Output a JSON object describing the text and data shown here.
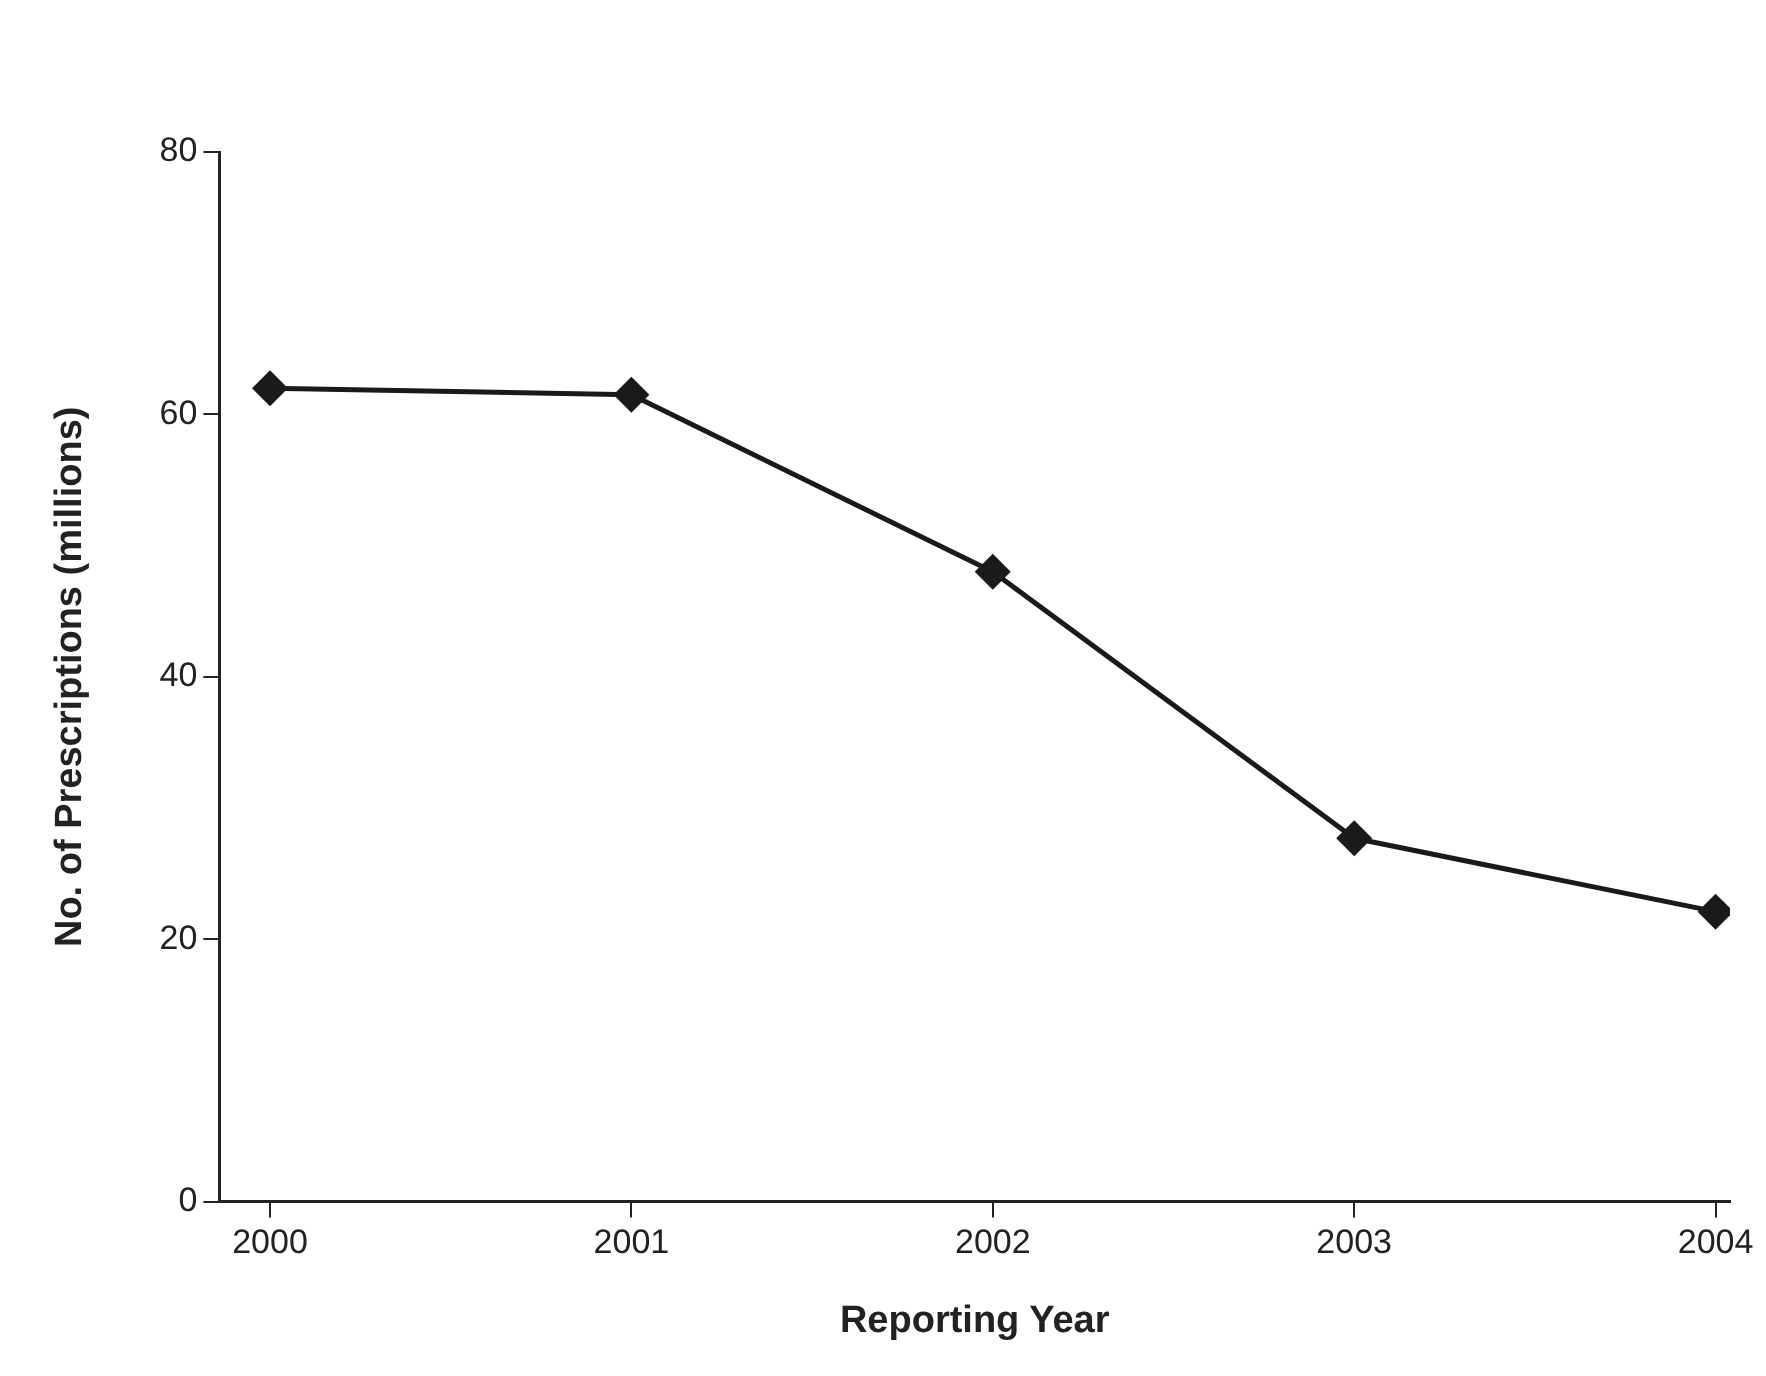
{
  "chart_data": {
    "type": "line",
    "xlabel": "Reporting Year",
    "ylabel": "No. of Prescriptions (millions)",
    "x": [
      2000,
      2001,
      2002,
      2003,
      2004
    ],
    "series": [
      {
        "color": "#1a1a1a",
        "values": [
          62,
          61.5,
          48,
          27.7,
          22.1
        ]
      }
    ],
    "xlim": [
      1999.86,
      2004.04
    ],
    "xticks": [
      2000,
      2001,
      2002,
      2003,
      2004
    ],
    "ylim": [
      0,
      80
    ],
    "yticks": [
      0,
      20,
      40,
      60,
      80
    ],
    "grid": false,
    "legend": false,
    "marker": "diamond",
    "line_style": "solid"
  }
}
